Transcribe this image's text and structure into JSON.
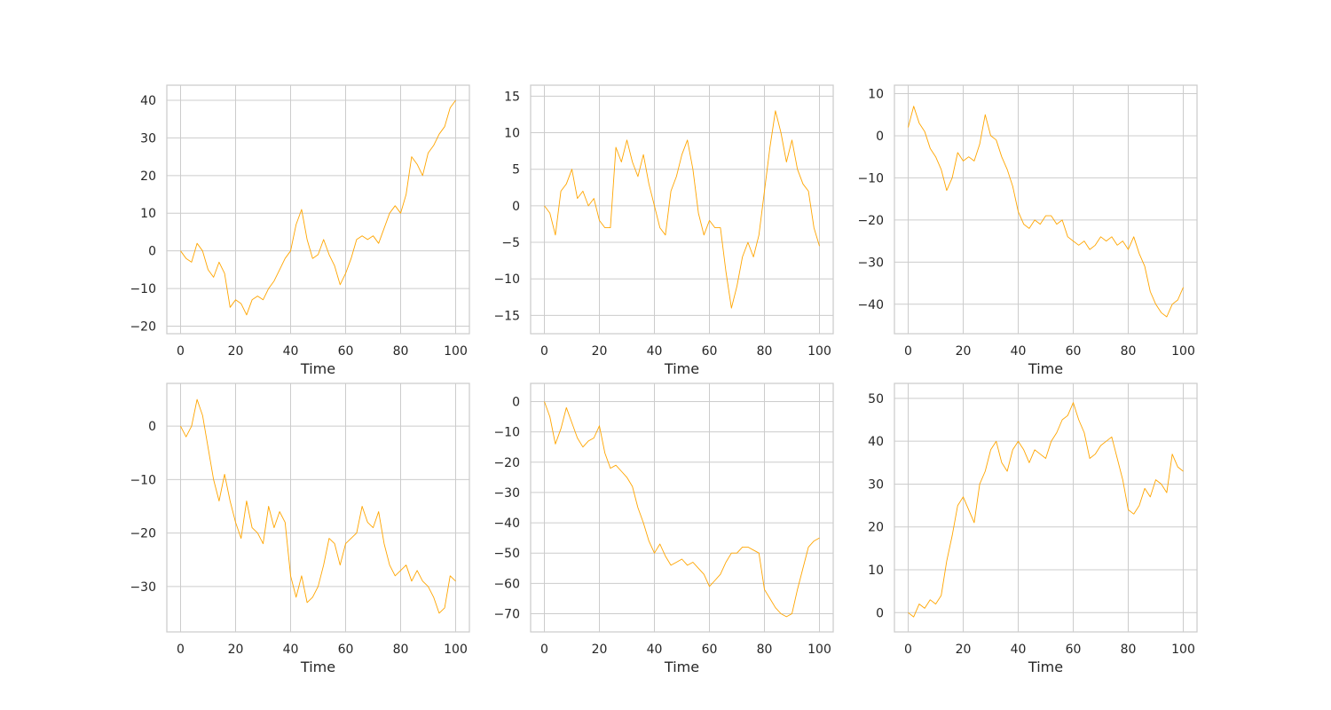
{
  "figure": {
    "line_color": "#FFA500",
    "grid_color": "#CCCCCC",
    "text_color": "#262626",
    "background": "#FFFFFF",
    "grid": true
  },
  "chart_data": [
    {
      "type": "line",
      "xlabel": "Time",
      "ylabel": "",
      "xlim": [
        -5,
        105
      ],
      "ylim": [
        -22,
        44
      ],
      "xticks": [
        0,
        20,
        40,
        60,
        80,
        100
      ],
      "yticks": [
        -20,
        -10,
        0,
        10,
        20,
        30,
        40
      ],
      "series": [
        {
          "x": [
            0,
            2,
            4,
            6,
            8,
            10,
            12,
            14,
            16,
            18,
            20,
            22,
            24,
            26,
            28,
            30,
            32,
            34,
            36,
            38,
            40,
            42,
            44,
            46,
            48,
            50,
            52,
            54,
            56,
            58,
            60,
            62,
            64,
            66,
            68,
            70,
            72,
            74,
            76,
            78,
            80,
            82,
            84,
            86,
            88,
            90,
            92,
            94,
            96,
            98,
            100
          ],
          "y": [
            0,
            -2,
            -3,
            2,
            0,
            -5,
            -7,
            -3,
            -6,
            -15,
            -13,
            -14,
            -17,
            -13,
            -12,
            -13,
            -10,
            -8,
            -5,
            -2,
            0,
            7,
            11,
            3,
            -2,
            -1,
            3,
            -1,
            -4,
            -9,
            -6,
            -2,
            3,
            4,
            3,
            4,
            2,
            6,
            10,
            12,
            10,
            15,
            25,
            23,
            20,
            26,
            28,
            31,
            33,
            38,
            40
          ]
        }
      ]
    },
    {
      "type": "line",
      "xlabel": "Time",
      "ylabel": "",
      "xlim": [
        -5,
        105
      ],
      "ylim": [
        -17.5,
        16.5
      ],
      "xticks": [
        0,
        20,
        40,
        60,
        80,
        100
      ],
      "yticks": [
        -15,
        -10,
        -5,
        0,
        5,
        10,
        15
      ],
      "series": [
        {
          "x": [
            0,
            2,
            4,
            6,
            8,
            10,
            12,
            14,
            16,
            18,
            20,
            22,
            24,
            26,
            28,
            30,
            32,
            34,
            36,
            38,
            40,
            42,
            44,
            46,
            48,
            50,
            52,
            54,
            56,
            58,
            60,
            62,
            64,
            66,
            68,
            70,
            72,
            74,
            76,
            78,
            80,
            82,
            84,
            86,
            88,
            90,
            92,
            94,
            96,
            98,
            100
          ],
          "y": [
            0,
            -1,
            -4,
            2,
            3,
            5,
            1,
            2,
            0,
            1,
            -2,
            -3,
            -3,
            8,
            6,
            9,
            6,
            4,
            7,
            3,
            0,
            -3,
            -4,
            2,
            4,
            7,
            9,
            5,
            -1,
            -4,
            -2,
            -3,
            -3,
            -9,
            -14,
            -11,
            -7,
            -5,
            -7,
            -4,
            2,
            8,
            13,
            10,
            6,
            9,
            5,
            3,
            2,
            -3,
            -5.5
          ]
        }
      ]
    },
    {
      "type": "line",
      "xlabel": "Time",
      "ylabel": "",
      "xlim": [
        -5,
        105
      ],
      "ylim": [
        -47,
        12
      ],
      "xticks": [
        0,
        20,
        40,
        60,
        80,
        100
      ],
      "yticks": [
        -40,
        -30,
        -20,
        -10,
        0,
        10
      ],
      "series": [
        {
          "x": [
            0,
            2,
            4,
            6,
            8,
            10,
            12,
            14,
            16,
            18,
            20,
            22,
            24,
            26,
            28,
            30,
            32,
            34,
            36,
            38,
            40,
            42,
            44,
            46,
            48,
            50,
            52,
            54,
            56,
            58,
            60,
            62,
            64,
            66,
            68,
            70,
            72,
            74,
            76,
            78,
            80,
            82,
            84,
            86,
            88,
            90,
            92,
            94,
            96,
            98,
            100
          ],
          "y": [
            2,
            7,
            3,
            1,
            -3,
            -5,
            -8,
            -13,
            -10,
            -4,
            -6,
            -5,
            -6,
            -2,
            5,
            0,
            -1,
            -5,
            -8,
            -12,
            -18,
            -21,
            -22,
            -20,
            -21,
            -19,
            -19,
            -21,
            -20,
            -24,
            -25,
            -26,
            -25,
            -27,
            -26,
            -24,
            -25,
            -24,
            -26,
            -25,
            -27,
            -24,
            -28,
            -31,
            -37,
            -40,
            -42,
            -43,
            -40,
            -39,
            -36
          ]
        }
      ]
    },
    {
      "type": "line",
      "xlabel": "Time",
      "ylabel": "",
      "xlim": [
        -5,
        105
      ],
      "ylim": [
        -38.5,
        8
      ],
      "xticks": [
        0,
        20,
        40,
        60,
        80,
        100
      ],
      "yticks": [
        -30,
        -20,
        -10,
        0
      ],
      "series": [
        {
          "x": [
            0,
            2,
            4,
            6,
            8,
            10,
            12,
            14,
            16,
            18,
            20,
            22,
            24,
            26,
            28,
            30,
            32,
            34,
            36,
            38,
            40,
            42,
            44,
            46,
            48,
            50,
            52,
            54,
            56,
            58,
            60,
            62,
            64,
            66,
            68,
            70,
            72,
            74,
            76,
            78,
            80,
            82,
            84,
            86,
            88,
            90,
            92,
            94,
            96,
            98,
            100
          ],
          "y": [
            0,
            -2,
            0,
            5,
            2,
            -4,
            -10,
            -14,
            -9,
            -14,
            -18,
            -21,
            -14,
            -19,
            -20,
            -22,
            -15,
            -19,
            -16,
            -18,
            -28,
            -32,
            -28,
            -33,
            -32,
            -30,
            -26,
            -21,
            -22,
            -26,
            -22,
            -21,
            -20,
            -15,
            -18,
            -19,
            -16,
            -22,
            -26,
            -28,
            -27,
            -26,
            -29,
            -27,
            -29,
            -30,
            -32,
            -35,
            -34,
            -28,
            -29
          ]
        }
      ]
    },
    {
      "type": "line",
      "xlabel": "Time",
      "ylabel": "",
      "xlim": [
        -5,
        105
      ],
      "ylim": [
        -76,
        6
      ],
      "xticks": [
        0,
        20,
        40,
        60,
        80,
        100
      ],
      "yticks": [
        -70,
        -60,
        -50,
        -40,
        -30,
        -20,
        -10,
        0
      ],
      "series": [
        {
          "x": [
            0,
            2,
            4,
            6,
            8,
            10,
            12,
            14,
            16,
            18,
            20,
            22,
            24,
            26,
            28,
            30,
            32,
            34,
            36,
            38,
            40,
            42,
            44,
            46,
            48,
            50,
            52,
            54,
            56,
            58,
            60,
            62,
            64,
            66,
            68,
            70,
            72,
            74,
            76,
            78,
            80,
            82,
            84,
            86,
            88,
            90,
            92,
            94,
            96,
            98,
            100
          ],
          "y": [
            0,
            -5,
            -14,
            -9,
            -2,
            -7,
            -12,
            -15,
            -13,
            -12,
            -8,
            -17,
            -22,
            -21,
            -23,
            -25,
            -28,
            -35,
            -40,
            -46,
            -50,
            -47,
            -51,
            -54,
            -53,
            -52,
            -54,
            -53,
            -55,
            -57,
            -61,
            -59,
            -57,
            -53,
            -50,
            -50,
            -48,
            -48,
            -49,
            -50,
            -62,
            -65,
            -68,
            -70,
            -71,
            -70,
            -62,
            -55,
            -48,
            -46,
            -45
          ]
        }
      ]
    },
    {
      "type": "line",
      "xlabel": "Time",
      "ylabel": "",
      "xlim": [
        -5,
        105
      ],
      "ylim": [
        -4.5,
        53.5
      ],
      "xticks": [
        0,
        20,
        40,
        60,
        80,
        100
      ],
      "yticks": [
        0,
        10,
        20,
        30,
        40,
        50
      ],
      "series": [
        {
          "x": [
            0,
            2,
            4,
            6,
            8,
            10,
            12,
            14,
            16,
            18,
            20,
            22,
            24,
            26,
            28,
            30,
            32,
            34,
            36,
            38,
            40,
            42,
            44,
            46,
            48,
            50,
            52,
            54,
            56,
            58,
            60,
            62,
            64,
            66,
            68,
            70,
            72,
            74,
            76,
            78,
            80,
            82,
            84,
            86,
            88,
            90,
            92,
            94,
            96,
            98,
            100
          ],
          "y": [
            0,
            -1,
            2,
            1,
            3,
            2,
            4,
            12,
            18,
            25,
            27,
            24,
            21,
            30,
            33,
            38,
            40,
            35,
            33,
            38,
            40,
            38,
            35,
            38,
            37,
            36,
            40,
            42,
            45,
            46,
            49,
            45,
            42,
            36,
            37,
            39,
            40,
            41,
            36,
            31,
            24,
            23,
            25,
            29,
            27,
            31,
            30,
            28,
            37,
            34,
            33
          ]
        }
      ]
    }
  ]
}
